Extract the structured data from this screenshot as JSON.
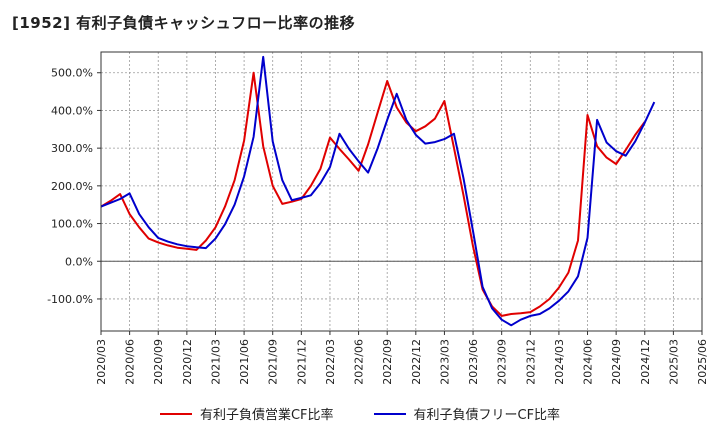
{
  "title": "[1952]  有利子負債キャッシュフロー比率の推移",
  "chart_data": {
    "type": "line",
    "title": "[1952]  有利子負債キャッシュフロー比率の推移",
    "xlabel": "",
    "ylabel": "",
    "ylim": [
      -185,
      555
    ],
    "yticks": [
      -100,
      0,
      100,
      200,
      300,
      400,
      500
    ],
    "ytick_labels": [
      "-100.0%",
      "0.0%",
      "100.0%",
      "200.0%",
      "300.0%",
      "400.0%",
      "500.0%"
    ],
    "xtick_labels": [
      "2020/03",
      "2020/06",
      "2020/09",
      "2020/12",
      "2021/03",
      "2021/06",
      "2021/09",
      "2021/12",
      "2022/03",
      "2022/06",
      "2022/09",
      "2022/12",
      "2023/03",
      "2023/06",
      "2023/09",
      "2023/12",
      "2024/03",
      "2024/06",
      "2024/09",
      "2024/12",
      "2025/03",
      "2025/06"
    ],
    "grid": true,
    "legend_position": "bottom",
    "colors": {
      "red": "#e00000",
      "blue": "#0000cc"
    },
    "series": [
      {
        "name": "有利子負債営業CF比率",
        "color": "#e00000",
        "points": [
          [
            0,
            145
          ],
          [
            1,
            160
          ],
          [
            2,
            178
          ],
          [
            3,
            125
          ],
          [
            4,
            90
          ],
          [
            5,
            60
          ],
          [
            6,
            50
          ],
          [
            7,
            42
          ],
          [
            8,
            36
          ],
          [
            9,
            33
          ],
          [
            10,
            30
          ],
          [
            11,
            55
          ],
          [
            12,
            90
          ],
          [
            13,
            145
          ],
          [
            14,
            215
          ],
          [
            15,
            320
          ],
          [
            16,
            500
          ],
          [
            17,
            305
          ],
          [
            18,
            200
          ],
          [
            19,
            152
          ],
          [
            20,
            158
          ],
          [
            21,
            165
          ],
          [
            22,
            200
          ],
          [
            23,
            245
          ],
          [
            24,
            328
          ],
          [
            25,
            298
          ],
          [
            26,
            270
          ],
          [
            27,
            240
          ],
          [
            28,
            310
          ],
          [
            29,
            395
          ],
          [
            30,
            478
          ],
          [
            31,
            408
          ],
          [
            32,
            368
          ],
          [
            33,
            345
          ],
          [
            34,
            358
          ],
          [
            35,
            378
          ],
          [
            36,
            425
          ],
          [
            37,
            300
          ],
          [
            38,
            175
          ],
          [
            39,
            40
          ],
          [
            40,
            -75
          ],
          [
            41,
            -120
          ],
          [
            42,
            -145
          ],
          [
            43,
            -140
          ],
          [
            44,
            -138
          ],
          [
            45,
            -135
          ],
          [
            46,
            -120
          ],
          [
            47,
            -100
          ],
          [
            48,
            -70
          ],
          [
            49,
            -30
          ],
          [
            50,
            55
          ],
          [
            51,
            388
          ],
          [
            52,
            305
          ],
          [
            53,
            275
          ],
          [
            54,
            258
          ],
          [
            55,
            295
          ],
          [
            56,
            335
          ],
          [
            57,
            370
          ]
        ]
      },
      {
        "name": "有利子負債フリーCF比率",
        "color": "#0000cc",
        "points": [
          [
            0,
            145
          ],
          [
            1,
            155
          ],
          [
            2,
            165
          ],
          [
            3,
            180
          ],
          [
            4,
            125
          ],
          [
            5,
            90
          ],
          [
            6,
            62
          ],
          [
            7,
            52
          ],
          [
            8,
            45
          ],
          [
            9,
            40
          ],
          [
            10,
            37
          ],
          [
            11,
            35
          ],
          [
            12,
            60
          ],
          [
            13,
            98
          ],
          [
            14,
            150
          ],
          [
            15,
            225
          ],
          [
            16,
            330
          ],
          [
            17,
            542
          ],
          [
            18,
            318
          ],
          [
            19,
            215
          ],
          [
            20,
            162
          ],
          [
            21,
            168
          ],
          [
            22,
            175
          ],
          [
            23,
            207
          ],
          [
            24,
            250
          ],
          [
            25,
            338
          ],
          [
            26,
            298
          ],
          [
            27,
            265
          ],
          [
            28,
            235
          ],
          [
            29,
            300
          ],
          [
            30,
            375
          ],
          [
            31,
            444
          ],
          [
            32,
            375
          ],
          [
            33,
            335
          ],
          [
            34,
            312
          ],
          [
            35,
            316
          ],
          [
            36,
            324
          ],
          [
            37,
            338
          ],
          [
            38,
            220
          ],
          [
            39,
            80
          ],
          [
            40,
            -68
          ],
          [
            41,
            -125
          ],
          [
            42,
            -155
          ],
          [
            43,
            -170
          ],
          [
            44,
            -155
          ],
          [
            45,
            -145
          ],
          [
            46,
            -140
          ],
          [
            47,
            -125
          ],
          [
            48,
            -105
          ],
          [
            49,
            -80
          ],
          [
            50,
            -40
          ],
          [
            51,
            62
          ],
          [
            52,
            375
          ],
          [
            53,
            315
          ],
          [
            54,
            292
          ],
          [
            55,
            280
          ],
          [
            56,
            318
          ],
          [
            57,
            368
          ],
          [
            58,
            422
          ]
        ]
      }
    ]
  }
}
